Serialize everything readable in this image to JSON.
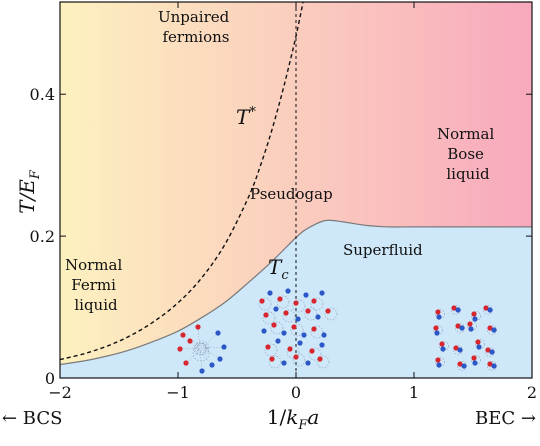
{
  "chart_data": {
    "type": "phase-diagram",
    "xlabel": "1/k_F a",
    "ylabel": "T/E_F",
    "x_ticks": [
      "−2",
      "−1",
      "0",
      "1",
      "2"
    ],
    "y_ticks": [
      "0",
      "0.2",
      "0.4"
    ],
    "xlim": [
      -2,
      2
    ],
    "ylim": [
      0,
      0.53
    ],
    "bottom_left": "← BCS",
    "bottom_right": "BEC →",
    "regions": {
      "unpaired": [
        "Unpaired",
        "fermions"
      ],
      "normal_fermi": [
        "Normal",
        "Fermi",
        "liquid"
      ],
      "pseudogap": "Pseudogap",
      "normal_bose": [
        "Normal",
        "Bose",
        "liquid"
      ],
      "superfluid": "Superfluid"
    },
    "curve_labels": {
      "t_star": "T",
      "t_star_sup": "*",
      "tc": "T",
      "tc_sub": "c"
    },
    "tc_curve": [
      [
        -2,
        0.019
      ],
      [
        -1.8,
        0.024
      ],
      [
        -1.6,
        0.031
      ],
      [
        -1.4,
        0.04
      ],
      [
        -1.2,
        0.052
      ],
      [
        -1.0,
        0.066
      ],
      [
        -0.8,
        0.085
      ],
      [
        -0.6,
        0.107
      ],
      [
        -0.4,
        0.135
      ],
      [
        -0.2,
        0.165
      ],
      [
        0,
        0.198
      ],
      [
        0.1,
        0.211
      ],
      [
        0.25,
        0.222
      ],
      [
        0.4,
        0.22
      ],
      [
        0.6,
        0.215
      ],
      [
        0.8,
        0.213
      ],
      [
        1.0,
        0.213
      ],
      [
        1.5,
        0.213
      ],
      [
        2.0,
        0.213
      ]
    ],
    "t_star_curve": [
      [
        -2,
        0.026
      ],
      [
        -1.8,
        0.034
      ],
      [
        -1.6,
        0.045
      ],
      [
        -1.4,
        0.06
      ],
      [
        -1.2,
        0.08
      ],
      [
        -1.0,
        0.106
      ],
      [
        -0.8,
        0.141
      ],
      [
        -0.6,
        0.189
      ],
      [
        -0.4,
        0.256
      ],
      [
        -0.3,
        0.3
      ],
      [
        -0.2,
        0.352
      ],
      [
        -0.1,
        0.413
      ],
      [
        0,
        0.482
      ],
      [
        0.06,
        0.53
      ]
    ],
    "dashed_vertical_x": 0
  },
  "colors": {
    "gradient_left": "#fdf1bf",
    "gradient_right": "#f8a9bd",
    "superfluid": "#cfe8f9",
    "red_particle": "#d7262e",
    "blue_particle": "#2b58c6"
  }
}
